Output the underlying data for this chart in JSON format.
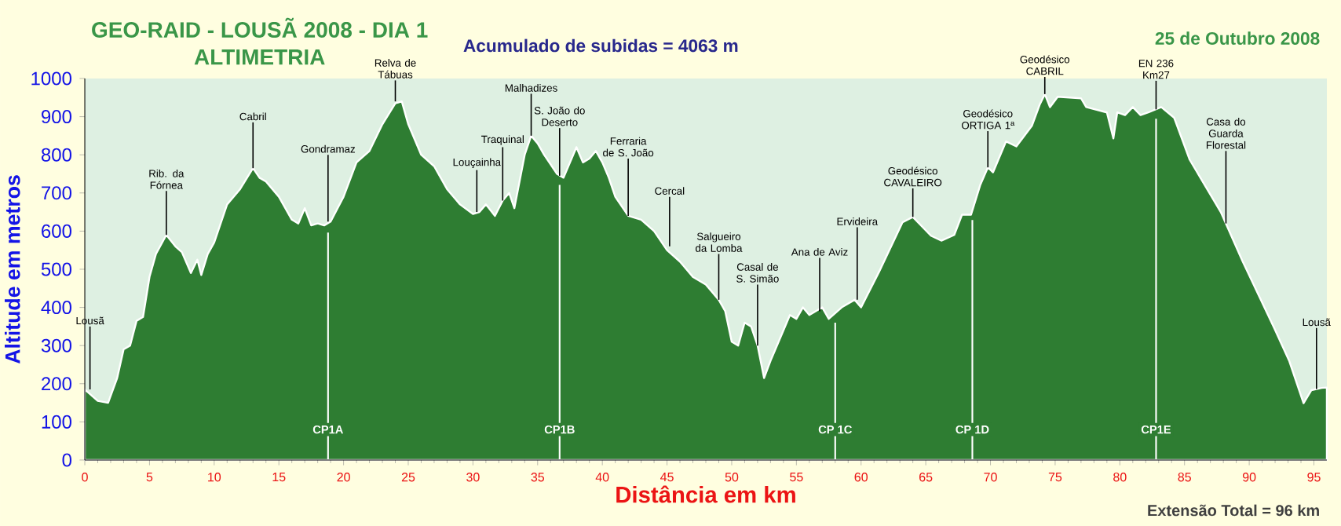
{
  "chart_data": {
    "type": "area",
    "title": "GEO-RAID - LOUSÃ 2008 - DIA 1",
    "subtitle": "ALTIMETRIA",
    "xlabel": "Distância em km",
    "ylabel": "Altitude em metros",
    "x": [
      0,
      0.5,
      1,
      1.8,
      2.5,
      3,
      3.5,
      4,
      4.5,
      5,
      5.5,
      6.3,
      7,
      7.5,
      8.2,
      8.7,
      9,
      9.5,
      10,
      11,
      12,
      13,
      13.5,
      14,
      15,
      16,
      16.5,
      17,
      17.5,
      18,
      18.5,
      19,
      20,
      21,
      22,
      23,
      24,
      24.5,
      25,
      26,
      27,
      28,
      29,
      30,
      30.5,
      31,
      31.7,
      32.3,
      32.8,
      33.2,
      34,
      34.5,
      35,
      35.5,
      36.5,
      37,
      38,
      38.5,
      39,
      39.5,
      40,
      40.5,
      41,
      42,
      43,
      44,
      45,
      46,
      47,
      48,
      49,
      49.5,
      50,
      50.5,
      51,
      51.5,
      52,
      52.5,
      53,
      54,
      54.5,
      55,
      55.5,
      56,
      57,
      57.5,
      58.5,
      59.5,
      60,
      61.4,
      63.2,
      64,
      65.4,
      66.2,
      67.2,
      67.8,
      68.5,
      69.2,
      69.8,
      70.2,
      71.2,
      72,
      73.2,
      73.8,
      74.2,
      74.6,
      75.2,
      77,
      77.4,
      79,
      79.5,
      79.8,
      80.4,
      81,
      81.6,
      82.2,
      83.2,
      84.2,
      85.4,
      87.8,
      89.5,
      91.9,
      93.1,
      94.2,
      94.8,
      95.6,
      96
    ],
    "values": [
      185,
      170,
      155,
      150,
      215,
      290,
      300,
      365,
      375,
      480,
      540,
      590,
      560,
      545,
      490,
      525,
      485,
      540,
      570,
      670,
      710,
      765,
      740,
      730,
      690,
      630,
      620,
      660,
      615,
      620,
      615,
      625,
      690,
      780,
      810,
      880,
      935,
      940,
      880,
      800,
      770,
      710,
      670,
      645,
      650,
      670,
      640,
      680,
      700,
      660,
      800,
      850,
      830,
      800,
      750,
      740,
      820,
      780,
      790,
      810,
      780,
      740,
      690,
      640,
      630,
      600,
      550,
      520,
      480,
      460,
      420,
      390,
      310,
      300,
      360,
      350,
      300,
      215,
      260,
      340,
      380,
      370,
      400,
      380,
      400,
      370,
      400,
      420,
      400,
      494,
      623,
      637,
      588,
      575,
      590,
      643,
      643,
      720,
      767,
      754,
      835,
      822,
      876,
      931,
      959,
      925,
      952,
      948,
      925,
      911,
      843,
      911,
      904,
      925,
      904,
      911,
      925,
      897,
      787,
      650,
      520,
      348,
      259,
      149,
      183,
      189,
      190
    ],
    "color": "#2e7d32",
    "xlim": [
      0,
      96
    ],
    "xticks": [
      0,
      5,
      10,
      15,
      20,
      25,
      30,
      35,
      40,
      45,
      50,
      55,
      60,
      65,
      70,
      75,
      80,
      85,
      90,
      95
    ],
    "ylim": [
      0,
      1000
    ],
    "yticks": [
      0,
      100,
      200,
      300,
      400,
      500,
      600,
      700,
      800,
      900,
      1000
    ],
    "ref_lines": [
      {
        "axis": "x",
        "value": 18.8,
        "label": "CP1A",
        "color": "#ffffff"
      },
      {
        "axis": "x",
        "value": 36.7,
        "label": "CP1B",
        "color": "#ffffff"
      },
      {
        "axis": "x",
        "value": 58,
        "label": "CP 1C",
        "color": "#ffffff"
      },
      {
        "axis": "x",
        "value": 68.6,
        "label": "CP 1D",
        "color": "#ffffff"
      },
      {
        "axis": "x",
        "value": 82.8,
        "label": "CP1E",
        "color": "#ffffff"
      }
    ],
    "annotations": [
      "Acumulado de subidas = 4063 m",
      "25 de Outubro 2008",
      "Extensão Total = 96 km",
      {
        "text": "Lousã",
        "x": 0.4,
        "y": 185
      },
      {
        "text": "Rib. da Fórnea",
        "x": 6.3,
        "y": 590
      },
      {
        "text": "Cabril",
        "x": 13,
        "y": 765
      },
      {
        "text": "Gondramaz",
        "x": 18.8,
        "y": 625
      },
      {
        "text": "Relva de Tábuas",
        "x": 24,
        "y": 940
      },
      {
        "text": "Louçainha",
        "x": 30.3,
        "y": 650
      },
      {
        "text": "Traquinal",
        "x": 32.3,
        "y": 680
      },
      {
        "text": "Malhadizes",
        "x": 34.5,
        "y": 850
      },
      {
        "text": "S. João do Deserto",
        "x": 36.7,
        "y": 745
      },
      {
        "text": "Ferraria de S. João",
        "x": 42,
        "y": 640
      },
      {
        "text": "Cercal",
        "x": 45.2,
        "y": 560
      },
      {
        "text": "Salgueiro da Lomba",
        "x": 49,
        "y": 420
      },
      {
        "text": "Casal de S. Simão",
        "x": 52,
        "y": 300
      },
      {
        "text": "Ana de Aviz",
        "x": 56.8,
        "y": 390
      },
      {
        "text": "Ervideira",
        "x": 59.7,
        "y": 420
      },
      {
        "text": "Geodésico CAVALEIRO",
        "x": 64,
        "y": 637
      },
      {
        "text": "Geodésico ORTIGA 1ª",
        "x": 69.8,
        "y": 767
      },
      {
        "text": "Geodésico CABRIL",
        "x": 74.2,
        "y": 959
      },
      {
        "text": "EN 236 Km27",
        "x": 82.8,
        "y": 919
      },
      {
        "text": "Casa do Guarda Florestal",
        "x": 88.2,
        "y": 620
      },
      {
        "text": "Lousã",
        "x": 95.2,
        "y": 186
      }
    ]
  }
}
